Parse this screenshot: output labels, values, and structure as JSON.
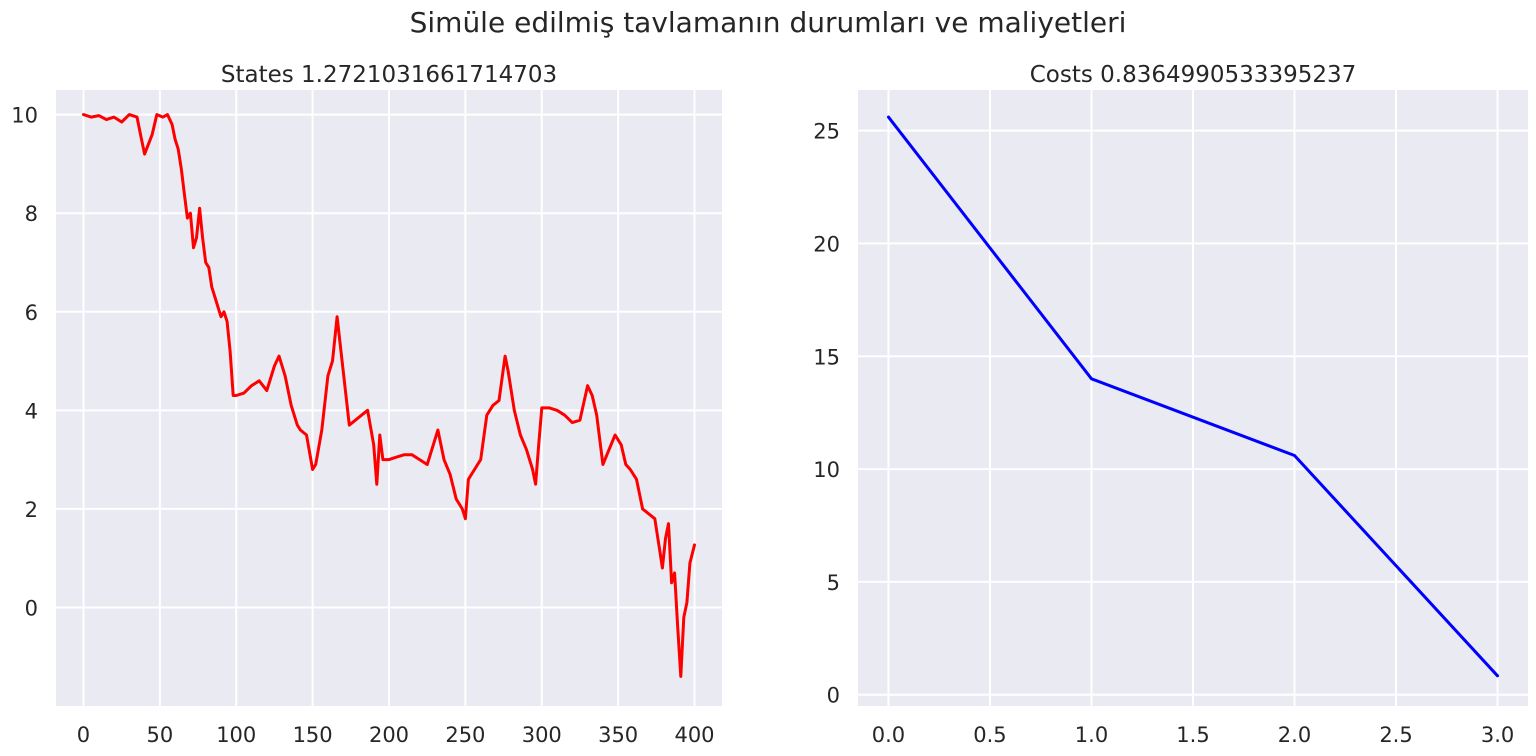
{
  "figure": {
    "suptitle": "Simüle edilmiş tavlamanın durumları ve maliyetleri"
  },
  "chart_data": [
    {
      "type": "line",
      "title": "States 1.2721031661714703",
      "xlabel": "",
      "ylabel": "",
      "xlim": [
        -18,
        418
      ],
      "ylim": [
        -2.0,
        10.5
      ],
      "xticks": [
        0,
        50,
        100,
        150,
        200,
        250,
        300,
        350,
        400
      ],
      "yticks": [
        0,
        2,
        4,
        6,
        8,
        10
      ],
      "grid": true,
      "series": [
        {
          "color": "#ff0000",
          "x": [
            0,
            5,
            10,
            15,
            20,
            25,
            30,
            35,
            38,
            40,
            45,
            48,
            52,
            55,
            58,
            60,
            62,
            64,
            66,
            68,
            70,
            72,
            74,
            76,
            78,
            80,
            82,
            84,
            86,
            88,
            90,
            92,
            94,
            96,
            98,
            100,
            105,
            110,
            115,
            120,
            125,
            128,
            132,
            136,
            140,
            142,
            146,
            150,
            152,
            156,
            160,
            163,
            166,
            170,
            174,
            178,
            182,
            186,
            190,
            192,
            194,
            196,
            200,
            205,
            210,
            215,
            220,
            225,
            228,
            232,
            236,
            240,
            244,
            248,
            250,
            252,
            256,
            260,
            264,
            268,
            272,
            276,
            278,
            282,
            286,
            290,
            294,
            296,
            298,
            300,
            305,
            310,
            315,
            320,
            325,
            330,
            333,
            336,
            340,
            344,
            348,
            352,
            355,
            358,
            362,
            366,
            370,
            374,
            377,
            379,
            381,
            383,
            385,
            387,
            389,
            391,
            393,
            395,
            397,
            400
          ],
          "y": [
            10.0,
            9.95,
            9.98,
            9.9,
            9.95,
            9.85,
            10.0,
            9.95,
            9.5,
            9.2,
            9.6,
            10.0,
            9.95,
            10.0,
            9.8,
            9.5,
            9.3,
            8.9,
            8.4,
            7.9,
            8.0,
            7.3,
            7.5,
            8.1,
            7.5,
            7.0,
            6.9,
            6.5,
            6.3,
            6.1,
            5.9,
            6.0,
            5.8,
            5.2,
            4.3,
            4.3,
            4.35,
            4.5,
            4.6,
            4.4,
            4.9,
            5.1,
            4.7,
            4.1,
            3.7,
            3.6,
            3.5,
            2.8,
            2.9,
            3.6,
            4.7,
            5.0,
            5.9,
            4.8,
            3.7,
            3.8,
            3.9,
            4.0,
            3.3,
            2.5,
            3.5,
            3.0,
            3.0,
            3.05,
            3.1,
            3.1,
            3.0,
            2.9,
            3.2,
            3.6,
            3.0,
            2.7,
            2.2,
            2.0,
            1.8,
            2.6,
            2.8,
            3.0,
            3.9,
            4.1,
            4.2,
            5.1,
            4.8,
            4.0,
            3.5,
            3.2,
            2.8,
            2.5,
            3.3,
            4.05,
            4.05,
            4.0,
            3.9,
            3.75,
            3.8,
            4.5,
            4.3,
            3.9,
            2.9,
            3.2,
            3.5,
            3.3,
            2.9,
            2.8,
            2.6,
            2.0,
            1.9,
            1.8,
            1.2,
            0.8,
            1.4,
            1.7,
            0.5,
            0.7,
            -0.4,
            -1.4,
            -0.2,
            0.1,
            0.9,
            1.27
          ]
        }
      ]
    },
    {
      "type": "line",
      "title": "Costs 0.8364990533395237",
      "xlabel": "",
      "ylabel": "",
      "xlim": [
        -0.15,
        3.15
      ],
      "ylim": [
        -0.5,
        26.8
      ],
      "xticks": [
        0.0,
        0.5,
        1.0,
        1.5,
        2.0,
        2.5,
        3.0
      ],
      "yticks": [
        0,
        5,
        10,
        15,
        20,
        25
      ],
      "grid": true,
      "series": [
        {
          "color": "#0000ff",
          "x": [
            0,
            1,
            2,
            3
          ],
          "y": [
            25.6,
            14.0,
            10.6,
            0.8364990533395237
          ]
        }
      ]
    }
  ]
}
